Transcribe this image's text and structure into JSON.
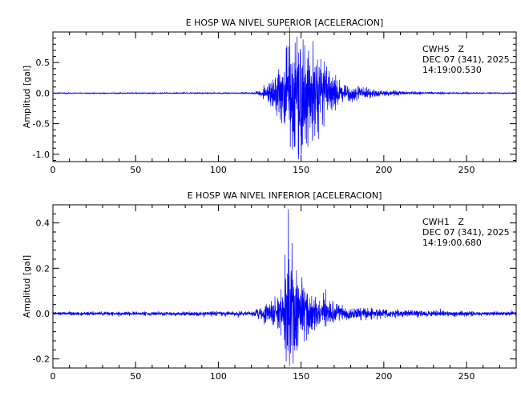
{
  "chart_data": [
    {
      "type": "line",
      "title": "E HOSP WA NIVEL SUPERIOR [ACELERACION]",
      "ylabel": "Amplitud [gal]",
      "xlabel": "",
      "xlim": [
        0,
        280
      ],
      "ylim": [
        -1.12,
        1.0
      ],
      "x_ticks": [
        0,
        50,
        100,
        150,
        200,
        250
      ],
      "y_ticks": [
        -1.0,
        -0.5,
        0.0,
        0.5
      ],
      "y_tick_labels": [
        "-1.0",
        "-0.5",
        "0.0",
        "0.5"
      ],
      "info": [
        "CWH5   Z",
        "DEC 07 (341), 2025",
        "14:19:00.530"
      ],
      "series": [
        {
          "color": "#0000ff",
          "noise": 0.01,
          "envelope": [
            [
              0,
              0.01
            ],
            [
              120,
              0.012
            ],
            [
              126,
              0.05
            ],
            [
              132,
              0.18
            ],
            [
              138,
              0.45
            ],
            [
              143,
              0.78
            ],
            [
              147,
              0.92
            ],
            [
              149,
              1.05
            ],
            [
              152,
              0.82
            ],
            [
              156,
              0.7
            ],
            [
              158,
              0.76
            ],
            [
              162,
              0.5
            ],
            [
              168,
              0.3
            ],
            [
              175,
              0.18
            ],
            [
              185,
              0.09
            ],
            [
              200,
              0.045
            ],
            [
              215,
              0.025
            ],
            [
              240,
              0.014
            ],
            [
              280,
              0.01
            ]
          ],
          "peaks": [
            [
              142.5,
              0.76
            ],
            [
              143.5,
              -0.88
            ],
            [
              147.5,
              0.92
            ],
            [
              148.5,
              -1.08
            ],
            [
              152.2,
              0.78
            ],
            [
              153.4,
              -0.82
            ],
            [
              157.2,
              0.85
            ],
            [
              158.6,
              -0.5
            ]
          ]
        }
      ]
    },
    {
      "type": "line",
      "title": "E HOSP WA NIVEL INFERIOR [ACELERACION]",
      "ylabel": "Amplitud [gal]",
      "xlabel": "",
      "xlim": [
        0,
        280
      ],
      "ylim": [
        -0.24,
        0.48
      ],
      "x_ticks": [
        0,
        50,
        100,
        150,
        200,
        250
      ],
      "y_ticks": [
        -0.2,
        0.0,
        0.2,
        0.4
      ],
      "y_tick_labels": [
        "-0.2",
        "0.0",
        "0.2",
        "0.4"
      ],
      "info": [
        "CWH1   Z",
        "DEC 07 (341), 2025",
        "14:19:00.680"
      ],
      "series": [
        {
          "color": "#0000ff",
          "noise": 0.008,
          "envelope": [
            [
              0,
              0.007
            ],
            [
              120,
              0.009
            ],
            [
              126,
              0.025
            ],
            [
              132,
              0.05
            ],
            [
              136,
              0.08
            ],
            [
              140,
              0.14
            ],
            [
              142,
              0.2
            ],
            [
              144,
              0.21
            ],
            [
              147,
              0.17
            ],
            [
              150,
              0.13
            ],
            [
              155,
              0.1
            ],
            [
              162,
              0.07
            ],
            [
              170,
              0.045
            ],
            [
              180,
              0.03
            ],
            [
              200,
              0.018
            ],
            [
              230,
              0.011
            ],
            [
              280,
              0.008
            ]
          ],
          "peaks": [
            [
              140.2,
              0.26
            ],
            [
              141.0,
              -0.21
            ],
            [
              142.3,
              0.46
            ],
            [
              143.0,
              -0.23
            ],
            [
              144.5,
              0.31
            ],
            [
              145.2,
              -0.22
            ],
            [
              147.2,
              0.19
            ],
            [
              150.5,
              0.16
            ]
          ]
        }
      ]
    }
  ]
}
